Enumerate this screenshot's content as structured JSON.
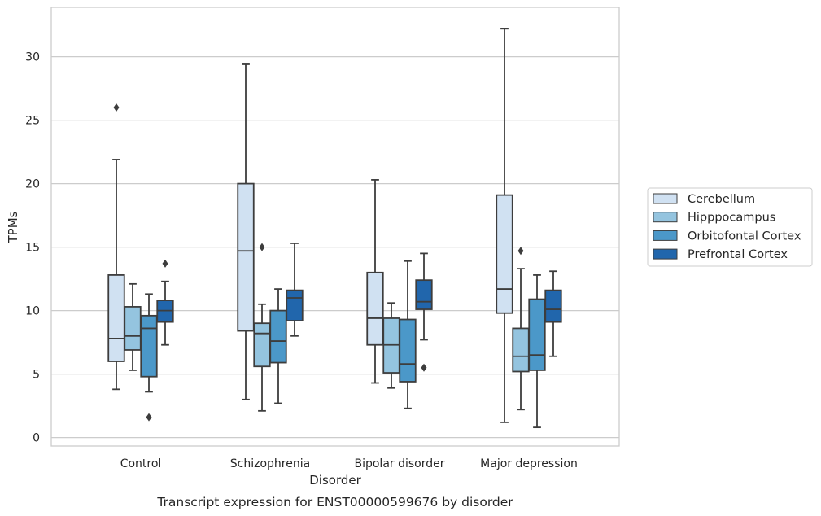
{
  "chart_data": {
    "type": "box",
    "title": "",
    "caption": "Transcript expression for ENST00000599676 by disorder",
    "xlabel": "Disorder",
    "ylabel": "TPMs",
    "ylim": [
      -0.6,
      34
    ],
    "yticks": [
      0,
      5,
      10,
      15,
      20,
      25,
      30
    ],
    "grid": "horizontal",
    "legend_position": "right",
    "categories": [
      "Control",
      "Schizophrenia",
      "Bipolar disorder",
      "Major depression"
    ],
    "series": [
      {
        "name": "Cerebellum",
        "color": "#d0e1f2",
        "boxes": [
          {
            "whislo": 3.8,
            "q1": 6.0,
            "med": 7.8,
            "q3": 12.8,
            "whishi": 21.9,
            "fliers": [
              26.0
            ]
          },
          {
            "whislo": 3.0,
            "q1": 8.4,
            "med": 14.7,
            "q3": 20.0,
            "whishi": 29.4,
            "fliers": []
          },
          {
            "whislo": 4.3,
            "q1": 7.3,
            "med": 9.4,
            "q3": 13.0,
            "whishi": 20.3,
            "fliers": []
          },
          {
            "whislo": 1.2,
            "q1": 9.8,
            "med": 11.7,
            "q3": 19.1,
            "whishi": 32.2,
            "fliers": []
          }
        ]
      },
      {
        "name": "Hipppocampus",
        "color": "#94c4df",
        "boxes": [
          {
            "whislo": 5.3,
            "q1": 6.9,
            "med": 8.0,
            "q3": 10.3,
            "whishi": 12.1,
            "fliers": []
          },
          {
            "whislo": 2.1,
            "q1": 5.6,
            "med": 8.2,
            "q3": 9.0,
            "whishi": 10.5,
            "fliers": [
              15.0
            ]
          },
          {
            "whislo": 3.9,
            "q1": 5.1,
            "med": 7.3,
            "q3": 9.4,
            "whishi": 10.6,
            "fliers": []
          },
          {
            "whislo": 2.2,
            "q1": 5.2,
            "med": 6.4,
            "q3": 8.6,
            "whishi": 13.3,
            "fliers": [
              14.7
            ]
          }
        ]
      },
      {
        "name": "Orbitofontal Cortex",
        "color": "#4b98c9",
        "boxes": [
          {
            "whislo": 3.6,
            "q1": 4.8,
            "med": 8.6,
            "q3": 9.6,
            "whishi": 11.3,
            "fliers": [
              1.6
            ]
          },
          {
            "whislo": 2.7,
            "q1": 5.9,
            "med": 7.6,
            "q3": 10.0,
            "whishi": 11.7,
            "fliers": []
          },
          {
            "whislo": 2.3,
            "q1": 4.4,
            "med": 5.8,
            "q3": 9.3,
            "whishi": 13.9,
            "fliers": []
          },
          {
            "whislo": 0.8,
            "q1": 5.3,
            "med": 6.5,
            "q3": 10.9,
            "whishi": 12.8,
            "fliers": []
          }
        ]
      },
      {
        "name": "Prefrontal Cortex",
        "color": "#2166ac",
        "boxes": [
          {
            "whislo": 7.3,
            "q1": 9.1,
            "med": 10.0,
            "q3": 10.8,
            "whishi": 12.3,
            "fliers": [
              13.7
            ]
          },
          {
            "whislo": 8.0,
            "q1": 9.2,
            "med": 11.0,
            "q3": 11.6,
            "whishi": 15.3,
            "fliers": []
          },
          {
            "whislo": 7.7,
            "q1": 10.1,
            "med": 10.7,
            "q3": 12.4,
            "whishi": 14.5,
            "fliers": [
              5.5
            ]
          },
          {
            "whislo": 6.4,
            "q1": 9.1,
            "med": 10.1,
            "q3": 11.6,
            "whishi": 13.1,
            "fliers": []
          }
        ]
      }
    ]
  }
}
